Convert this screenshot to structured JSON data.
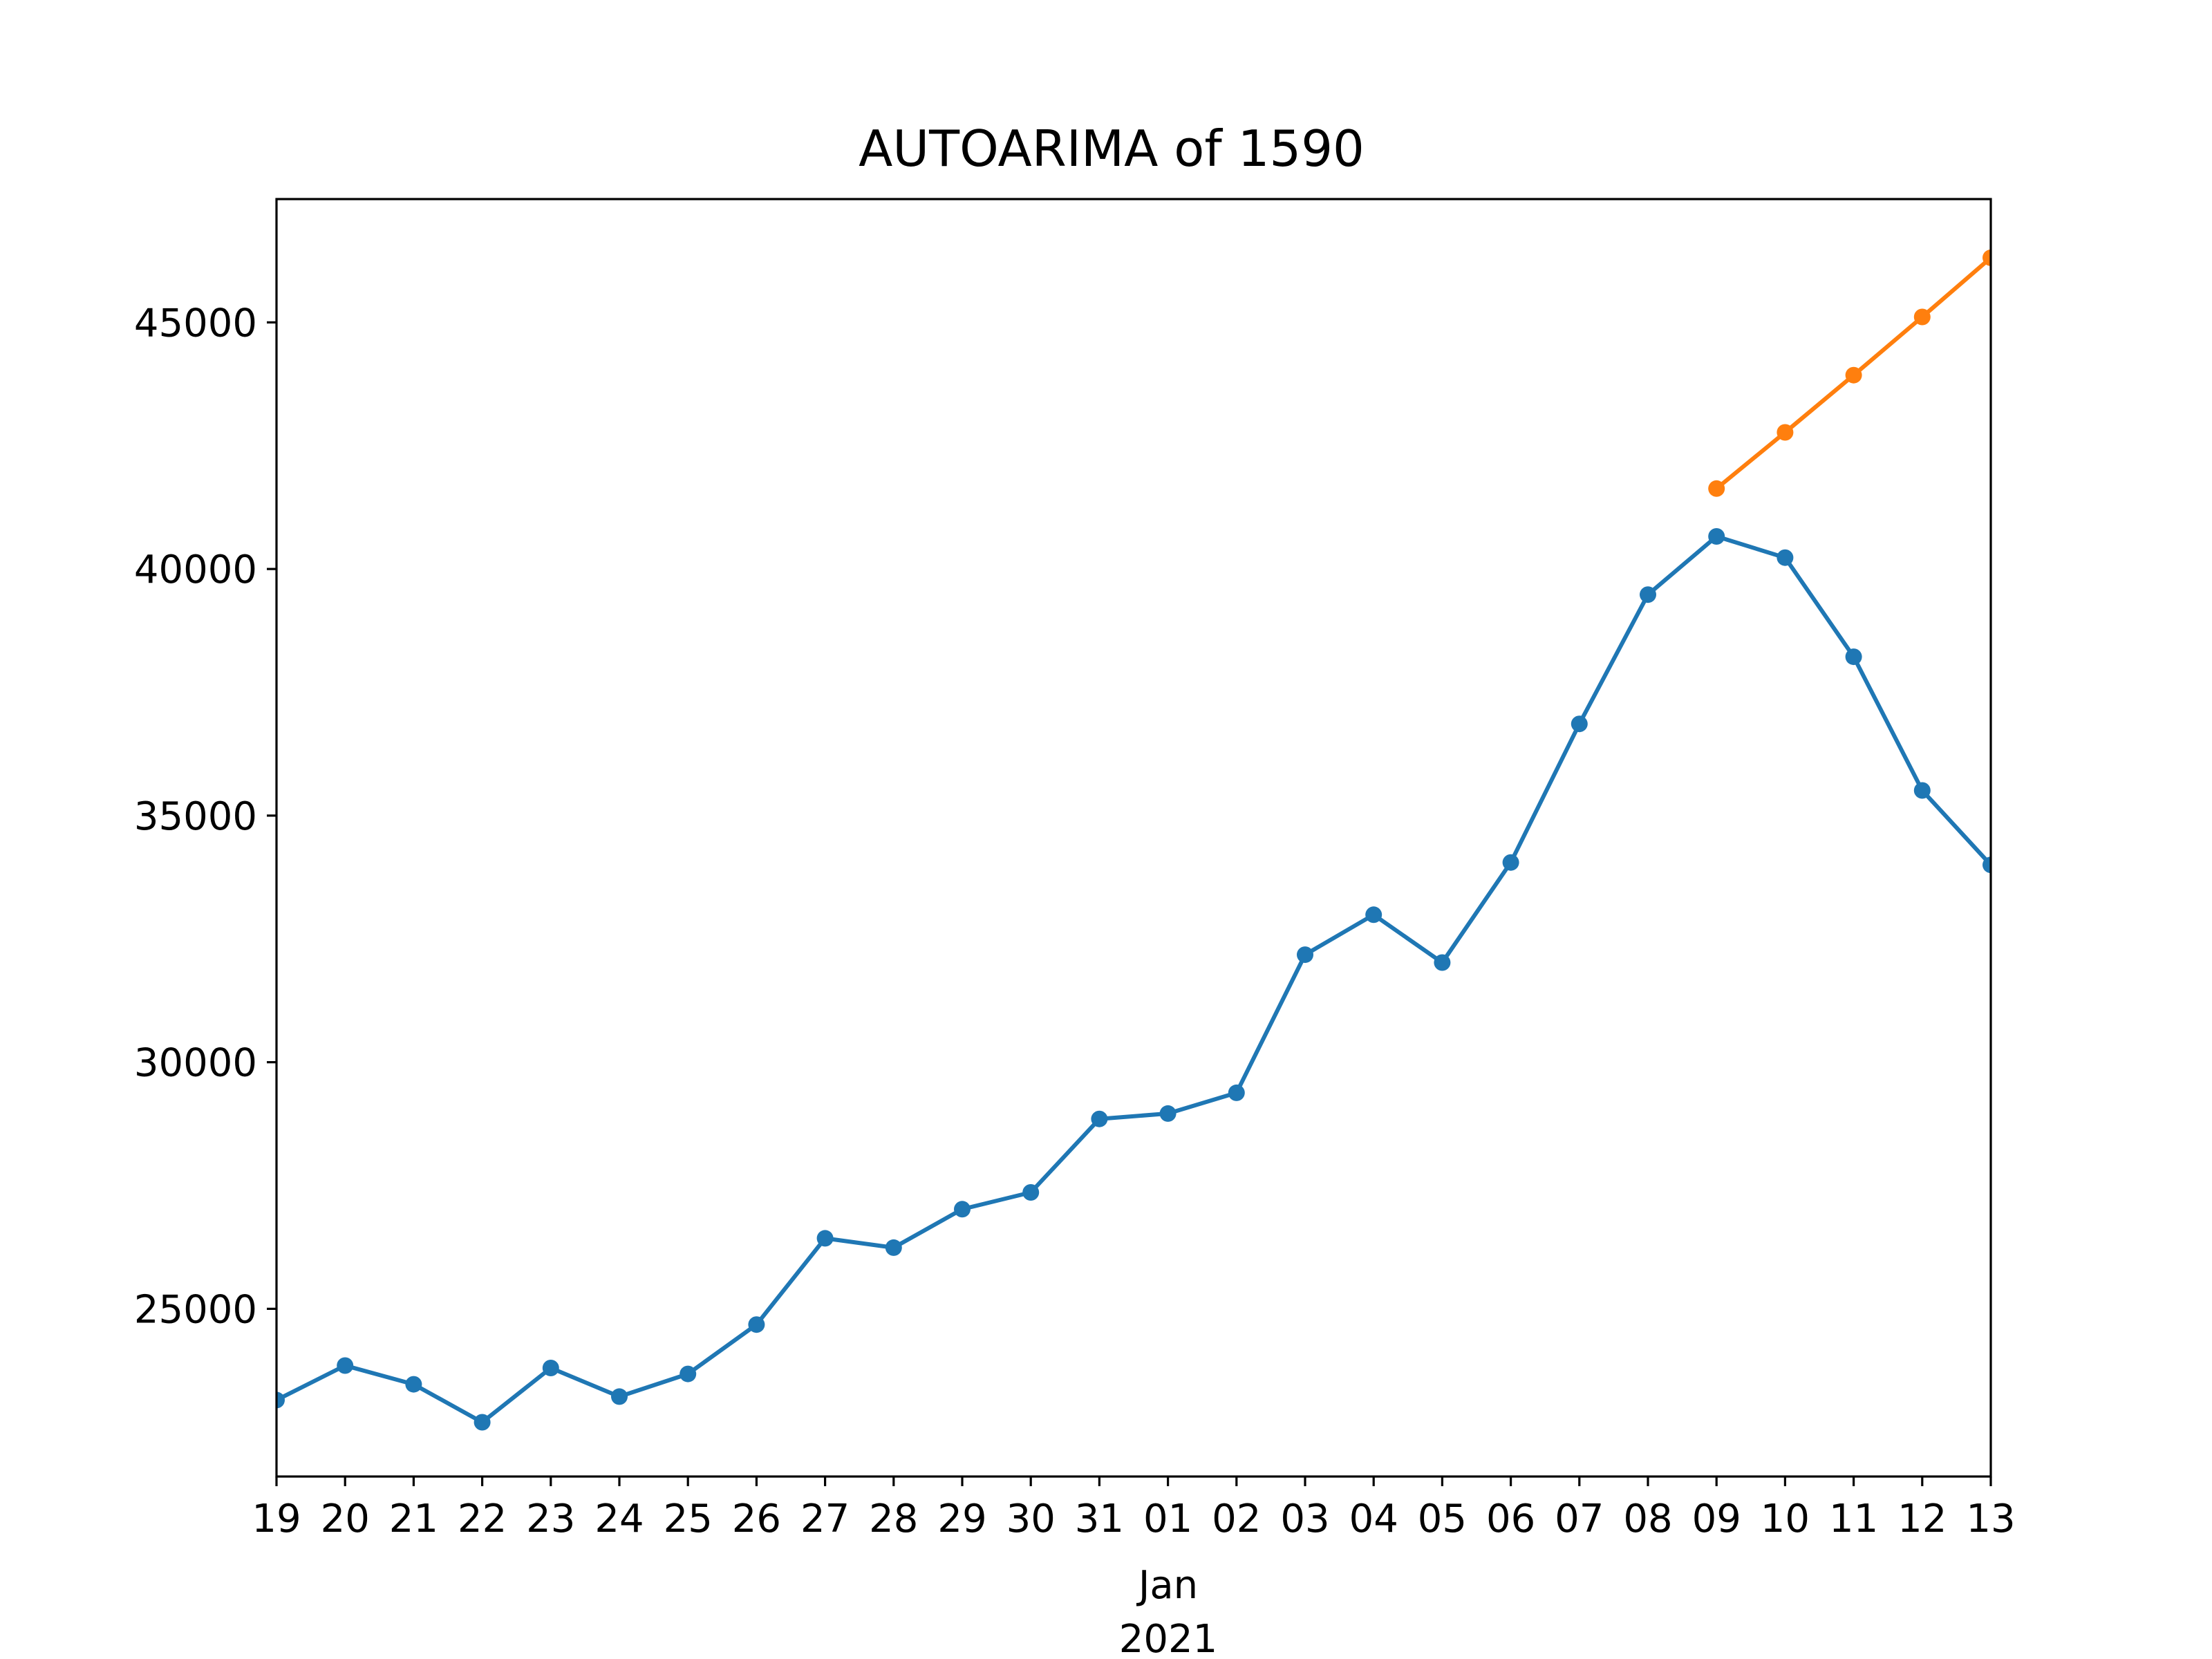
{
  "chart_data": {
    "type": "line",
    "title": "AUTOARIMA of 1590",
    "xlabel": "",
    "ylabel": "",
    "x_tick_labels": [
      "19",
      "20",
      "21",
      "22",
      "23",
      "24",
      "25",
      "26",
      "27",
      "28",
      "29",
      "30",
      "31",
      "01",
      "02",
      "03",
      "04",
      "05",
      "06",
      "07",
      "08",
      "09",
      "10",
      "11",
      "12",
      "13"
    ],
    "x_secondary_label": {
      "month": "Jan",
      "year": "2021"
    },
    "y_ticks": [
      25000,
      30000,
      35000,
      40000,
      45000
    ],
    "y_tick_labels": [
      "25000",
      "30000",
      "35000",
      "40000",
      "45000"
    ],
    "ylim": [
      21600,
      47500
    ],
    "x_range": [
      0,
      25
    ],
    "grid": false,
    "series": [
      {
        "color": "#1f77b4",
        "marker": "circle",
        "points": [
          {
            "x": 0,
            "y": 23150
          },
          {
            "x": 1,
            "y": 23850
          },
          {
            "x": 2,
            "y": 23470
          },
          {
            "x": 3,
            "y": 22700
          },
          {
            "x": 4,
            "y": 23800
          },
          {
            "x": 5,
            "y": 23220
          },
          {
            "x": 6,
            "y": 23680
          },
          {
            "x": 7,
            "y": 24680
          },
          {
            "x": 8,
            "y": 26430
          },
          {
            "x": 9,
            "y": 26240
          },
          {
            "x": 10,
            "y": 27020
          },
          {
            "x": 11,
            "y": 27360
          },
          {
            "x": 12,
            "y": 28850
          },
          {
            "x": 13,
            "y": 28960
          },
          {
            "x": 14,
            "y": 29380
          },
          {
            "x": 15,
            "y": 32180
          },
          {
            "x": 16,
            "y": 32990
          },
          {
            "x": 17,
            "y": 32020
          },
          {
            "x": 18,
            "y": 34050
          },
          {
            "x": 19,
            "y": 36860
          },
          {
            "x": 20,
            "y": 39480
          },
          {
            "x": 21,
            "y": 40660
          },
          {
            "x": 22,
            "y": 40230
          },
          {
            "x": 23,
            "y": 38220
          },
          {
            "x": 24,
            "y": 35510
          },
          {
            "x": 25,
            "y": 34000
          }
        ]
      },
      {
        "color": "#ff7f0e",
        "marker": "circle",
        "points": [
          {
            "x": 21,
            "y": 41630
          },
          {
            "x": 22,
            "y": 42770
          },
          {
            "x": 23,
            "y": 43930
          },
          {
            "x": 24,
            "y": 45110
          },
          {
            "x": 25,
            "y": 46310
          }
        ]
      }
    ]
  }
}
